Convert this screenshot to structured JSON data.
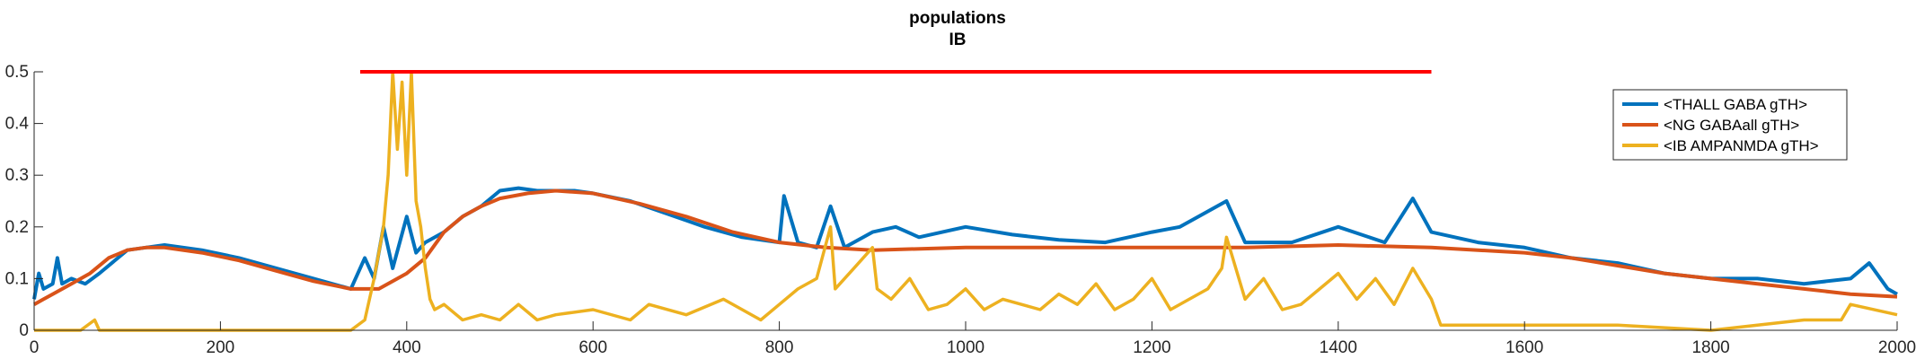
{
  "chart_data": {
    "type": "line",
    "title": "populations",
    "subtitle": "IB",
    "xlabel": "",
    "ylabel": "",
    "xlim": [
      0,
      2000
    ],
    "ylim": [
      0,
      0.5
    ],
    "x_ticks": [
      0,
      200,
      400,
      600,
      800,
      1000,
      1200,
      1400,
      1600,
      1800,
      2000
    ],
    "y_ticks": [
      0,
      0.1,
      0.2,
      0.3,
      0.4,
      0.5
    ],
    "y_tick_labels": [
      "0",
      "0.1",
      "0.2",
      "0.3",
      "0.4",
      "0.5"
    ],
    "grid": false,
    "legend_position": "top-right",
    "series": [
      {
        "name": "<THALL GABA gTH>",
        "color": "#0072BD",
        "x": [
          0,
          5,
          10,
          20,
          25,
          30,
          40,
          55,
          70,
          100,
          120,
          140,
          180,
          220,
          260,
          300,
          340,
          355,
          365,
          375,
          385,
          400,
          410,
          420,
          440,
          460,
          480,
          500,
          520,
          540,
          560,
          580,
          600,
          640,
          680,
          720,
          760,
          800,
          805,
          820,
          840,
          855,
          870,
          900,
          925,
          950,
          1000,
          1050,
          1100,
          1150,
          1200,
          1230,
          1250,
          1280,
          1300,
          1350,
          1400,
          1450,
          1480,
          1500,
          1550,
          1600,
          1650,
          1700,
          1750,
          1800,
          1850,
          1900,
          1950,
          1970,
          1990,
          2000
        ],
        "values": [
          0.06,
          0.11,
          0.08,
          0.09,
          0.14,
          0.09,
          0.1,
          0.09,
          0.11,
          0.155,
          0.16,
          0.165,
          0.155,
          0.14,
          0.12,
          0.1,
          0.08,
          0.14,
          0.1,
          0.2,
          0.12,
          0.22,
          0.15,
          0.17,
          0.19,
          0.22,
          0.24,
          0.27,
          0.275,
          0.27,
          0.27,
          0.27,
          0.265,
          0.25,
          0.225,
          0.2,
          0.18,
          0.17,
          0.26,
          0.17,
          0.16,
          0.24,
          0.16,
          0.19,
          0.2,
          0.18,
          0.2,
          0.185,
          0.175,
          0.17,
          0.19,
          0.2,
          0.22,
          0.25,
          0.17,
          0.17,
          0.2,
          0.17,
          0.255,
          0.19,
          0.17,
          0.16,
          0.14,
          0.13,
          0.11,
          0.1,
          0.1,
          0.09,
          0.1,
          0.13,
          0.08,
          0.07
        ]
      },
      {
        "name": "<NG GABAall gTH>",
        "color": "#D95319",
        "x": [
          0,
          10,
          20,
          40,
          60,
          80,
          100,
          120,
          140,
          180,
          220,
          260,
          300,
          340,
          370,
          400,
          420,
          440,
          460,
          480,
          500,
          530,
          560,
          600,
          650,
          700,
          750,
          800,
          850,
          900,
          1000,
          1100,
          1200,
          1300,
          1400,
          1500,
          1550,
          1600,
          1650,
          1700,
          1750,
          1800,
          1850,
          1900,
          1950,
          2000
        ],
        "values": [
          0.05,
          0.06,
          0.07,
          0.09,
          0.11,
          0.14,
          0.155,
          0.16,
          0.16,
          0.15,
          0.135,
          0.115,
          0.095,
          0.08,
          0.08,
          0.11,
          0.14,
          0.19,
          0.22,
          0.24,
          0.255,
          0.265,
          0.27,
          0.265,
          0.245,
          0.22,
          0.19,
          0.17,
          0.16,
          0.155,
          0.16,
          0.16,
          0.16,
          0.16,
          0.165,
          0.16,
          0.155,
          0.15,
          0.14,
          0.125,
          0.11,
          0.1,
          0.09,
          0.08,
          0.07,
          0.065
        ]
      },
      {
        "name": "<IB AMPANMDA gTH>",
        "color": "#EDB120",
        "x": [
          0,
          50,
          65,
          70,
          80,
          150,
          250,
          340,
          355,
          365,
          375,
          380,
          385,
          390,
          395,
          400,
          405,
          410,
          415,
          420,
          425,
          430,
          440,
          460,
          480,
          500,
          520,
          540,
          560,
          600,
          640,
          660,
          700,
          740,
          780,
          800,
          820,
          840,
          855,
          860,
          880,
          900,
          905,
          920,
          940,
          960,
          980,
          1000,
          1020,
          1040,
          1060,
          1080,
          1100,
          1120,
          1140,
          1160,
          1180,
          1200,
          1220,
          1240,
          1260,
          1275,
          1280,
          1300,
          1320,
          1340,
          1360,
          1380,
          1400,
          1420,
          1440,
          1460,
          1480,
          1500,
          1510,
          1600,
          1700,
          1800,
          1850,
          1900,
          1940,
          1950,
          2000
        ],
        "values": [
          0.0,
          0.0,
          0.02,
          0.0,
          0.0,
          0.0,
          0.0,
          0.0,
          0.02,
          0.1,
          0.2,
          0.3,
          0.5,
          0.35,
          0.48,
          0.3,
          0.5,
          0.25,
          0.2,
          0.12,
          0.06,
          0.04,
          0.05,
          0.02,
          0.03,
          0.02,
          0.05,
          0.02,
          0.03,
          0.04,
          0.02,
          0.05,
          0.03,
          0.06,
          0.02,
          0.05,
          0.08,
          0.1,
          0.2,
          0.08,
          0.12,
          0.16,
          0.08,
          0.06,
          0.1,
          0.04,
          0.05,
          0.08,
          0.04,
          0.06,
          0.05,
          0.04,
          0.07,
          0.05,
          0.09,
          0.04,
          0.06,
          0.1,
          0.04,
          0.06,
          0.08,
          0.12,
          0.18,
          0.06,
          0.1,
          0.04,
          0.05,
          0.08,
          0.11,
          0.06,
          0.1,
          0.05,
          0.12,
          0.06,
          0.01,
          0.01,
          0.01,
          0.0,
          0.01,
          0.02,
          0.02,
          0.05,
          0.03
        ]
      }
    ],
    "reference_line": {
      "color": "#FF0000",
      "x": [
        350,
        1500
      ],
      "y": 0.5
    }
  }
}
